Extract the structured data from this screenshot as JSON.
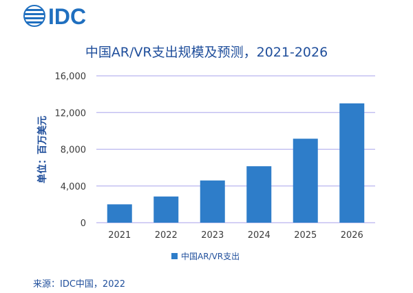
{
  "brand": {
    "logo_text": "IDC",
    "logo_color": "#1f6fbf"
  },
  "chart_data": {
    "type": "bar",
    "title": "中国AR/VR支出规模及预测，2021-2026",
    "ylabel": "单位：百万美元",
    "xlabel": "",
    "categories": [
      "2021",
      "2022",
      "2023",
      "2024",
      "2025",
      "2026"
    ],
    "series": [
      {
        "name": "中国AR/VR支出",
        "values": [
          2000,
          2850,
          4600,
          6150,
          9150,
          13000
        ],
        "color": "#2e7dc9"
      }
    ],
    "ylim": [
      0,
      16000
    ],
    "yticks": [
      0,
      4000,
      8000,
      12000,
      16000
    ],
    "ytick_labels": [
      "0",
      "4,000",
      "8,000",
      "12,000",
      "16,000"
    ],
    "grid": true,
    "grid_color": "#b9b5ef",
    "legend": "bottom-center"
  },
  "source": "来源：IDC中国，2022"
}
